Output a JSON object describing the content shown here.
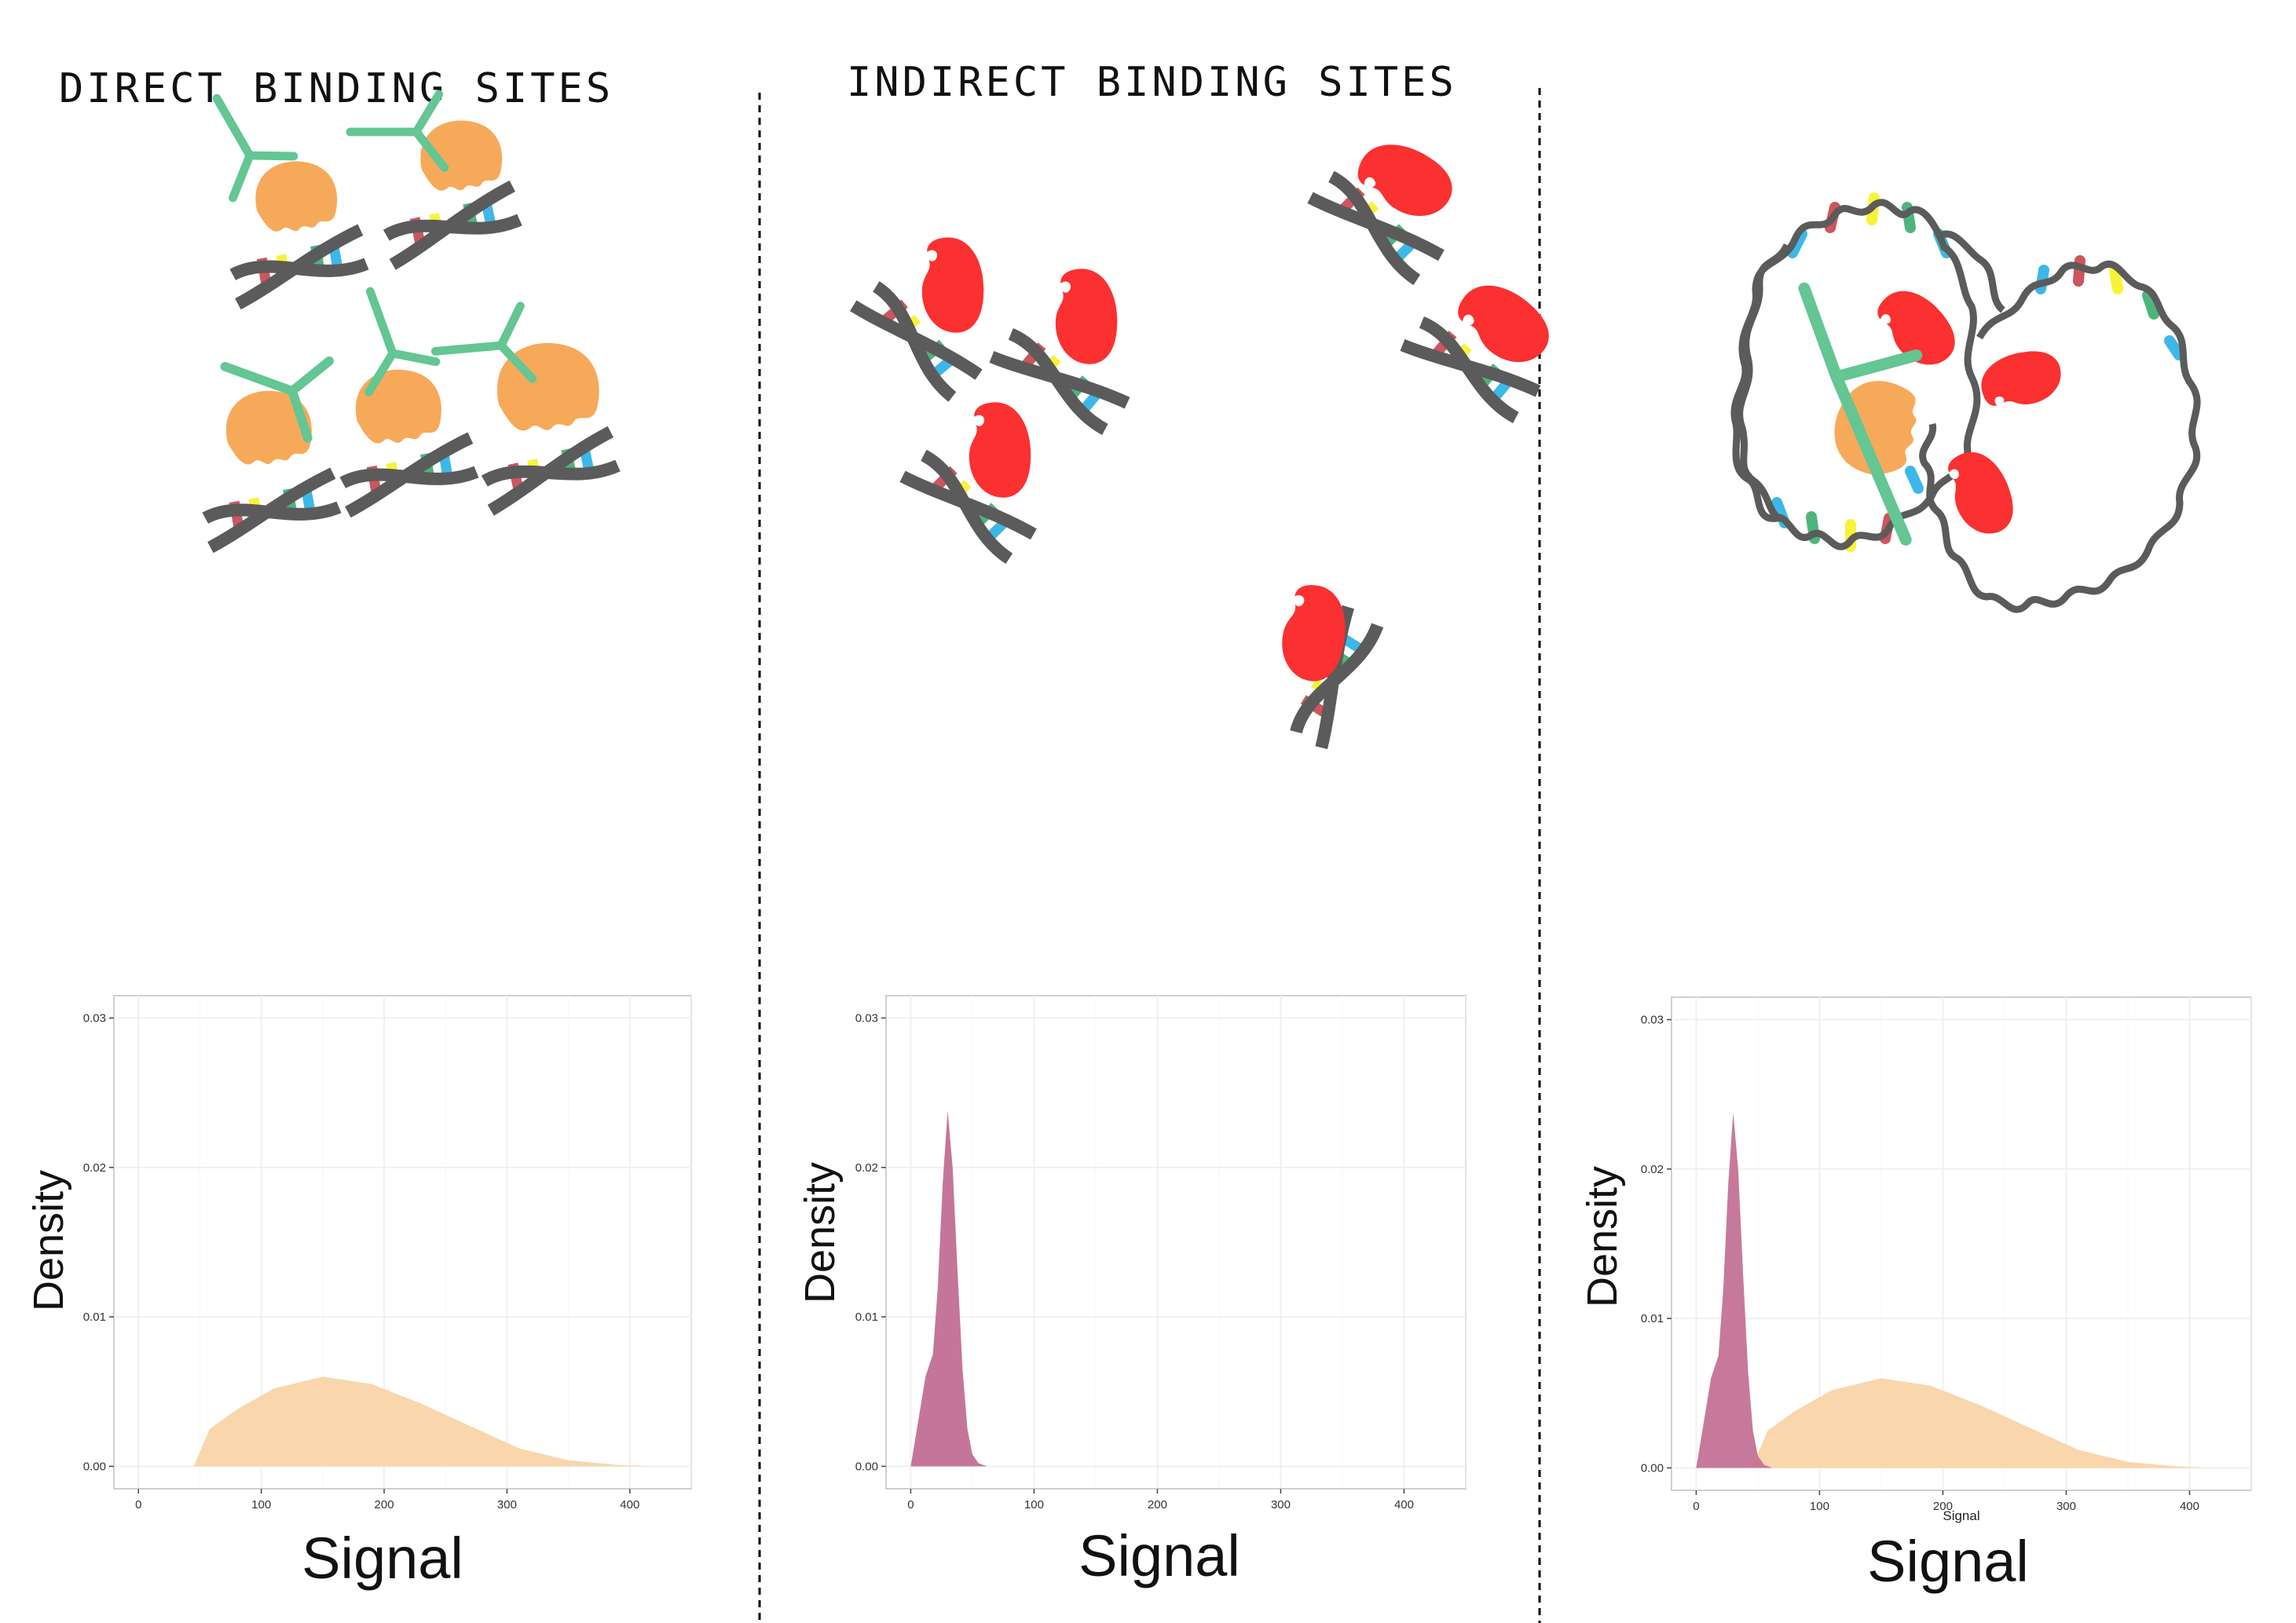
{
  "panels": [
    {
      "title": "DIRECT BINDING SITES"
    },
    {
      "title": "INDIRECT BINDING SITES"
    },
    {
      "title": ""
    }
  ],
  "colors": {
    "direct_protein": "#f7a95a",
    "indirect_protein": "#fb3030",
    "antibody": "#63c693",
    "dna_backbone": "#5b5b5b",
    "base_red": "#cf545d",
    "base_yellow": "#f8f337",
    "base_blue": "#3cb8e8",
    "base_green": "#4db57b",
    "direct_density": "#f9d4a6",
    "indirect_density": "#c26e93"
  },
  "chart_data": [
    {
      "type": "area",
      "xlabel": "Signal",
      "ylabel": "Density",
      "xlim": [
        -20,
        450
      ],
      "ylim": [
        -0.0015,
        0.0315
      ],
      "x_ticks": [
        "0",
        "100",
        "200",
        "300",
        "400"
      ],
      "y_ticks": [
        "0.00",
        "0.01",
        "0.02",
        "0.03"
      ],
      "grid": true,
      "series": [
        {
          "color": "#f9d4a6",
          "x": [
            45,
            58,
            80,
            110,
            150,
            190,
            230,
            270,
            310,
            350,
            390,
            420
          ],
          "values": [
            0,
            0.0025,
            0.0038,
            0.0052,
            0.006,
            0.0055,
            0.0042,
            0.0027,
            0.0012,
            0.0004,
            0.0001,
            0
          ]
        }
      ]
    },
    {
      "type": "area",
      "xlabel": "Signal",
      "ylabel": "Density",
      "xlim": [
        -20,
        450
      ],
      "ylim": [
        -0.0015,
        0.0315
      ],
      "x_ticks": [
        "0",
        "100",
        "200",
        "300",
        "400"
      ],
      "y_ticks": [
        "0.00",
        "0.01",
        "0.02",
        "0.03"
      ],
      "grid": true,
      "series": [
        {
          "color": "#c26e93",
          "x": [
            0,
            5,
            12,
            18,
            22,
            26,
            30,
            34,
            38,
            42,
            46,
            50,
            55,
            62,
            70
          ],
          "values": [
            0,
            0.0025,
            0.006,
            0.0075,
            0.012,
            0.019,
            0.0238,
            0.02,
            0.013,
            0.0065,
            0.0025,
            0.0008,
            0.0002,
            0,
            0
          ]
        }
      ]
    },
    {
      "type": "area",
      "xlabel": "Signal",
      "ylabel": "Density",
      "xlim": [
        -20,
        450
      ],
      "ylim": [
        -0.0015,
        0.0315
      ],
      "x_ticks": [
        "0",
        "100",
        "200",
        "300",
        "400"
      ],
      "y_ticks": [
        "0.00",
        "0.01",
        "0.02",
        "0.03"
      ],
      "grid": true,
      "inner_xlabel": "Signal",
      "series": [
        {
          "color": "#f9d4a6",
          "x": [
            45,
            58,
            80,
            110,
            150,
            190,
            230,
            270,
            310,
            350,
            390,
            420
          ],
          "values": [
            0,
            0.0025,
            0.0038,
            0.0052,
            0.006,
            0.0055,
            0.0042,
            0.0027,
            0.0012,
            0.0004,
            0.0001,
            0
          ]
        },
        {
          "color": "#c26e93",
          "x": [
            0,
            5,
            12,
            18,
            22,
            26,
            30,
            34,
            38,
            42,
            46,
            50,
            55,
            62,
            70
          ],
          "values": [
            0,
            0.0025,
            0.006,
            0.0075,
            0.012,
            0.019,
            0.0238,
            0.02,
            0.013,
            0.0065,
            0.0025,
            0.0008,
            0.0002,
            0,
            0
          ]
        }
      ]
    }
  ]
}
